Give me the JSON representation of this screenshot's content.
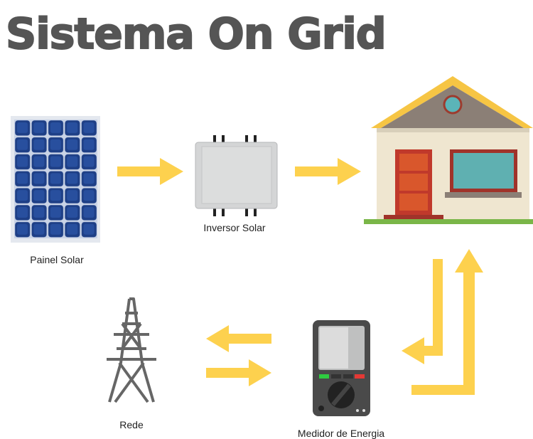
{
  "title": "Sistema On Grid",
  "nodes": [
    {
      "label": "Painel Solar"
    },
    {
      "label": "Inversor Solar"
    },
    {
      "label": "Rede"
    },
    {
      "label": "Medidor de Energia"
    }
  ]
}
